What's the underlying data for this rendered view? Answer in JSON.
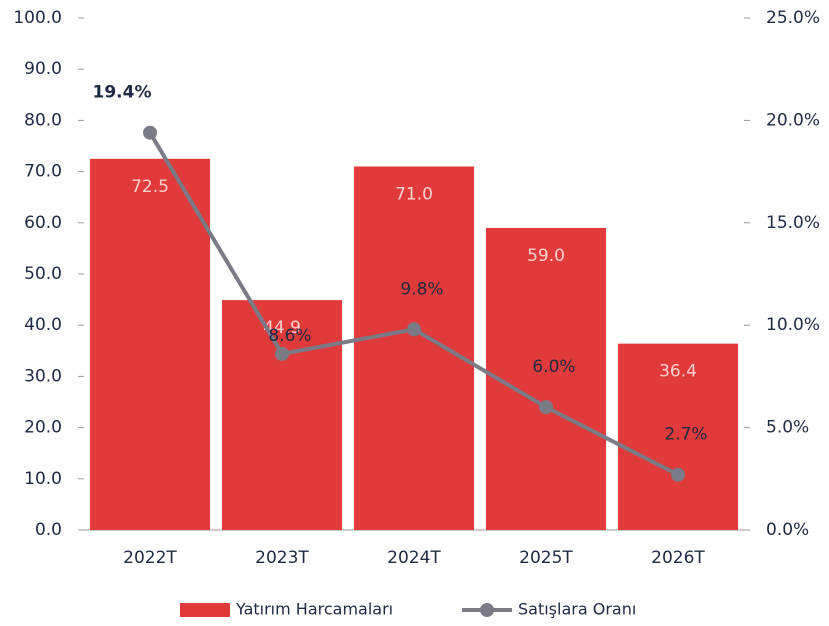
{
  "chart_data": {
    "type": "bar_line",
    "categories": [
      "2022T",
      "2023T",
      "2024T",
      "2025T",
      "2026T"
    ],
    "series": [
      {
        "name": "Yatırım Harcamaları",
        "color": "#e03a3a",
        "type": "bar",
        "values": [
          72.5,
          44.9,
          71.0,
          59.0,
          36.4
        ],
        "value_labels": [
          "72.5",
          "44.9",
          "71.0",
          "59.0",
          "36.4"
        ]
      },
      {
        "name": "Satışlara Oranı",
        "color": "#7b7b87",
        "type": "line",
        "axis": "y2",
        "values": [
          19.4,
          8.6,
          9.8,
          6.0,
          2.7
        ],
        "value_labels": [
          "19.4%",
          "8.6%",
          "9.8%",
          "6.0%",
          "2.7%"
        ]
      }
    ],
    "ylim": [
      0,
      100
    ],
    "yticks": [
      {
        "value": 0,
        "label": "0.0"
      },
      {
        "value": 10,
        "label": "10.0"
      },
      {
        "value": 20,
        "label": "20.0"
      },
      {
        "value": 30,
        "label": "30.0"
      },
      {
        "value": 40,
        "label": "40.0"
      },
      {
        "value": 50,
        "label": "50.0"
      },
      {
        "value": 60,
        "label": "60.0"
      },
      {
        "value": 70,
        "label": "70.0"
      },
      {
        "value": 80,
        "label": "80.0"
      },
      {
        "value": 90,
        "label": "90.0"
      },
      {
        "value": 100,
        "label": "100.0"
      }
    ],
    "y2lim": [
      0,
      25
    ],
    "y2ticks": [
      {
        "value": 0,
        "label": "0.0%"
      },
      {
        "value": 5,
        "label": "5.0%"
      },
      {
        "value": 10,
        "label": "10.0%"
      },
      {
        "value": 15,
        "label": "15.0%"
      },
      {
        "value": 20,
        "label": "20.0%"
      },
      {
        "value": 25,
        "label": "25.0%"
      }
    ],
    "legend": "bottom"
  }
}
